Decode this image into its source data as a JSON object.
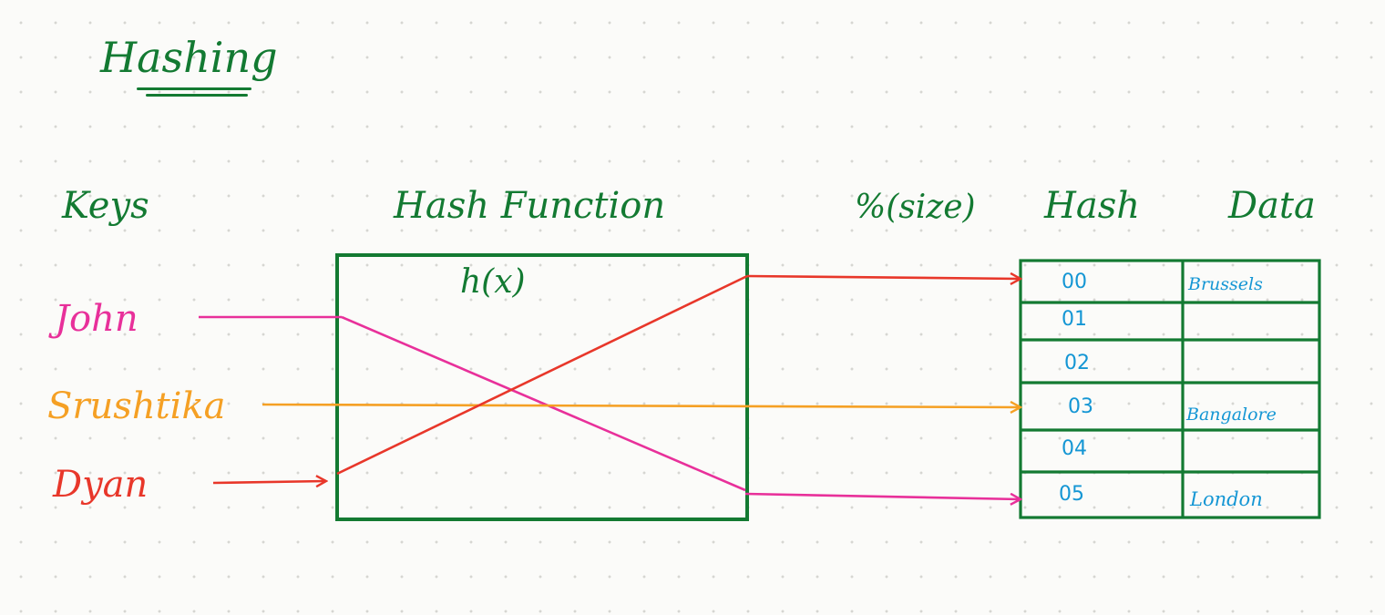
{
  "title": "Hashing",
  "headers": {
    "keys": "Keys",
    "hash_function": "Hash Function",
    "modulo": "%(size)",
    "hash": "Hash",
    "data": "Data"
  },
  "function_label": "h(x)",
  "keys": [
    {
      "label": "John",
      "color": "#e8309a"
    },
    {
      "label": "Srushtika",
      "color": "#f5a024"
    },
    {
      "label": "Dyan",
      "color": "#e8372a"
    }
  ],
  "table": {
    "rows": [
      {
        "hash": "00",
        "data": "Brussels"
      },
      {
        "hash": "01",
        "data": ""
      },
      {
        "hash": "02",
        "data": ""
      },
      {
        "hash": "03",
        "data": "Bangalore"
      },
      {
        "hash": "04",
        "data": ""
      },
      {
        "hash": "05",
        "data": "London"
      }
    ]
  },
  "mapping": [
    {
      "key": "John",
      "hash": "05"
    },
    {
      "key": "Srushtika",
      "hash": "03"
    },
    {
      "key": "Dyan",
      "hash": "00"
    }
  ],
  "colors": {
    "ink_green": "#137a32",
    "ink_blue": "#1496d4",
    "john_pink": "#e8309a",
    "srushtika_orange": "#f5a024",
    "dyan_red": "#e8372a"
  }
}
